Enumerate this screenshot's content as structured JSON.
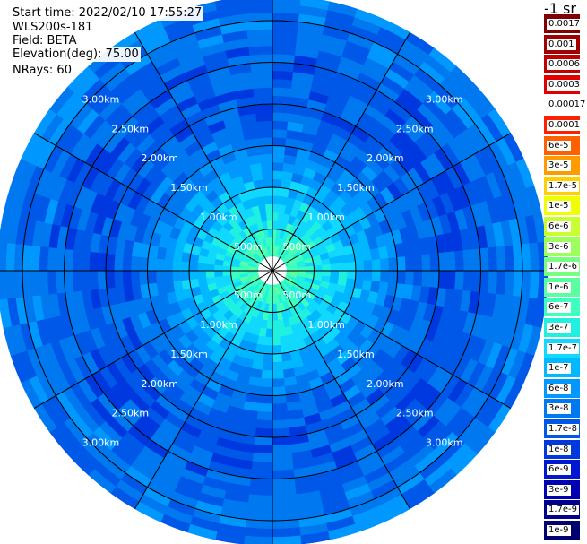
{
  "info": {
    "start_time": "Start time: 2022/02/10 17:55:27",
    "instrument": "WLS200s-181",
    "field": "Field: BETA",
    "elevation": "Elevation(deg): 75.00",
    "nrays": "NRays: 60"
  },
  "colorbar": {
    "unit": "-1 sr",
    "entries": [
      {
        "label": "0.0017",
        "color": "#800000"
      },
      {
        "label": "0.001",
        "color": "#a00000"
      },
      {
        "label": "0.0006",
        "color": "#c00000"
      },
      {
        "label": "0.0003",
        "color": "#e00000"
      },
      {
        "label": "0.00017",
        "color": "#ffffff"
      },
      {
        "label": "0.0001",
        "color": "#ff2000"
      },
      {
        "label": "6e-5",
        "color": "#ff6000"
      },
      {
        "label": "3e-5",
        "color": "#ff9a00"
      },
      {
        "label": "1.7e-5",
        "color": "#ffcf00"
      },
      {
        "label": "1e-5",
        "color": "#f0ff00"
      },
      {
        "label": "6e-6",
        "color": "#c8ff30"
      },
      {
        "label": "3e-6",
        "color": "#9cff5c"
      },
      {
        "label": "1.7e-6",
        "color": "#78ff80"
      },
      {
        "label": "1e-6",
        "color": "#5affa0"
      },
      {
        "label": "6e-7",
        "color": "#3dffbf"
      },
      {
        "label": "3e-7",
        "color": "#20f0e0"
      },
      {
        "label": "1.7e-7",
        "color": "#10d8ff"
      },
      {
        "label": "1e-7",
        "color": "#00b8ff"
      },
      {
        "label": "6e-8",
        "color": "#0098ff"
      },
      {
        "label": "3e-8",
        "color": "#0078f0"
      },
      {
        "label": "1.7e-8",
        "color": "#0058e8"
      },
      {
        "label": "1e-8",
        "color": "#0038e0"
      },
      {
        "label": "6e-9",
        "color": "#0018d0"
      },
      {
        "label": "3e-9",
        "color": "#0000b0"
      },
      {
        "label": "1.7e-9",
        "color": "#000090"
      },
      {
        "label": "1e-9",
        "color": "#000070"
      }
    ]
  },
  "chart_data": {
    "type": "heatmap",
    "projection": "polar PPI",
    "field": "BETA",
    "nrays": 60,
    "range_rings_km": [
      0.5,
      1.0,
      1.5,
      2.0,
      2.5,
      3.0
    ],
    "range_labels": [
      "500m",
      "1.00km",
      "1.50km",
      "2.00km",
      "2.50km",
      "3.00km"
    ],
    "max_range_km": 3.3,
    "radial_lines_deg": [
      0,
      30,
      60,
      90,
      120,
      150,
      180,
      210,
      240,
      270,
      300,
      330
    ],
    "radial_profile": [
      {
        "range_km": 0.25,
        "color_index": 14
      },
      {
        "range_km": 0.5,
        "color_index": 15
      },
      {
        "range_km": 0.75,
        "color_index": 16
      },
      {
        "range_km": 1.0,
        "color_index": 17
      },
      {
        "range_km": 1.25,
        "color_index": 18
      },
      {
        "range_km": 1.5,
        "color_index": 19
      },
      {
        "range_km": 2.0,
        "color_index": 20
      },
      {
        "range_km": 2.5,
        "color_index": 20
      },
      {
        "range_km": 3.0,
        "color_index": 19
      },
      {
        "range_km": 3.3,
        "color_index": 19
      }
    ]
  }
}
